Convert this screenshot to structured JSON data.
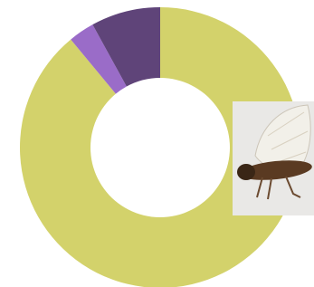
{
  "chart_data": {
    "type": "donut",
    "categories": [
      null,
      null,
      null
    ],
    "values": [
      89,
      3,
      8
    ],
    "colors": [
      "#d3d26b",
      "#9a6cc8",
      "#5f4479"
    ]
  }
}
